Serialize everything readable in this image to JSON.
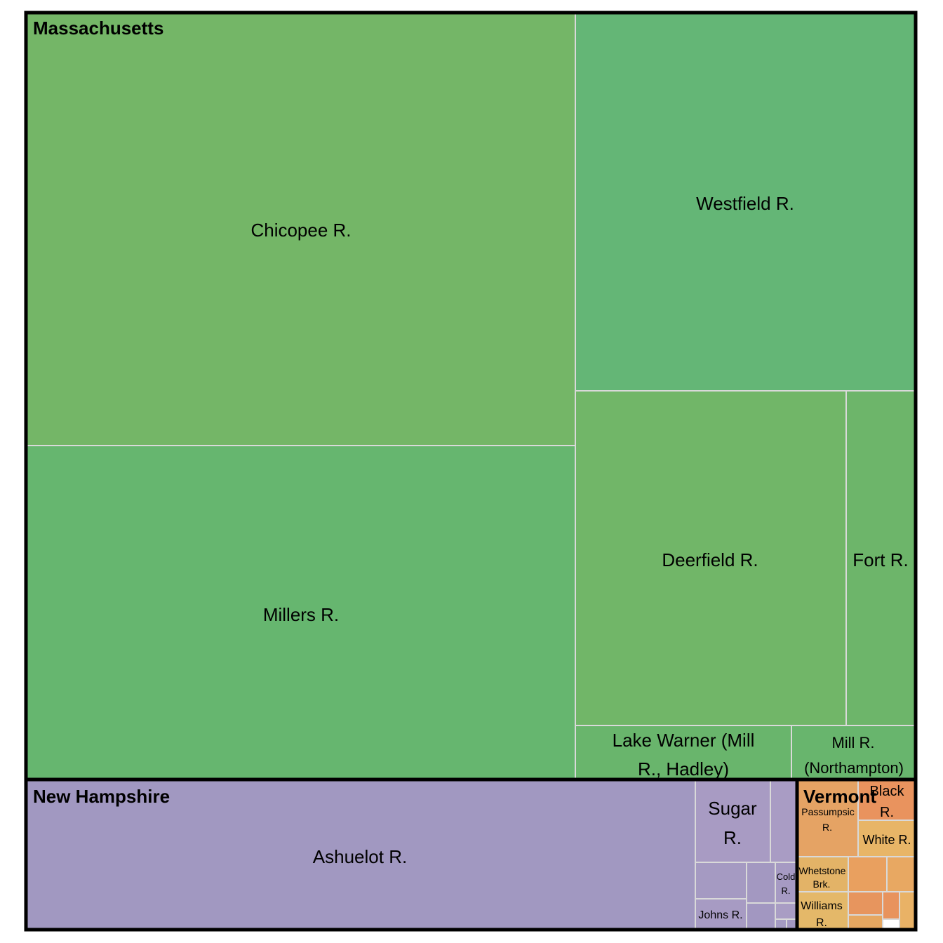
{
  "chart_data": {
    "type": "treemap",
    "groups": [
      {
        "name": "Massachusetts",
        "color": "#6DB56A",
        "items": [
          {
            "label": "Chicopee R.",
            "color": "#74B667"
          },
          {
            "label": "Millers R.",
            "color": "#66B66F"
          },
          {
            "label": "Westfield R.",
            "color": "#64B676"
          },
          {
            "label": "Deerfield R.",
            "color": "#71B668"
          },
          {
            "label": "Fort R.",
            "color": "#6DB56A"
          },
          {
            "label": "Lake Warner (Mill R., Hadley)",
            "color": "#69B56C"
          },
          {
            "label": "Mill R. (Northampton)",
            "color": "#68B56D"
          }
        ]
      },
      {
        "name": "New Hampshire",
        "color": "#A198C1",
        "items": [
          {
            "label": "Ashuelot R.",
            "color": "#A198C1"
          },
          {
            "label": "Sugar R.",
            "color": "#A89BC3"
          },
          {
            "label": "",
            "color": "#A99CC4"
          },
          {
            "label": "",
            "color": "#A59AC2"
          },
          {
            "label": "",
            "color": "#A398C1"
          },
          {
            "label": "Cold R.",
            "color": "#A69AC3"
          },
          {
            "label": "Johns R.",
            "color": "#A79BC3"
          },
          {
            "label": "",
            "color": "#A297C1"
          },
          {
            "label": "",
            "color": "#A99DC4"
          },
          {
            "label": "",
            "color": "#A49AC2"
          },
          {
            "label": "",
            "color": "#A196C0"
          }
        ]
      },
      {
        "name": "Vermont",
        "color": "#E5A364",
        "items": [
          {
            "label": "Passumpsic R.",
            "color": "#E5A364"
          },
          {
            "label": "Black R.",
            "color": "#E9935E"
          },
          {
            "label": "White R.",
            "color": "#E8B567"
          },
          {
            "label": "Whetstone Brk.",
            "color": "#E3B367"
          },
          {
            "label": "",
            "color": "#E9A05F"
          },
          {
            "label": "",
            "color": "#E8A862"
          },
          {
            "label": "Williams R.",
            "color": "#E4B869"
          },
          {
            "label": "",
            "color": "#E7955E"
          },
          {
            "label": "",
            "color": "#E8935D"
          },
          {
            "label": "",
            "color": "#E6A761"
          },
          {
            "label": "",
            "color": "#E9B266"
          }
        ]
      }
    ]
  }
}
